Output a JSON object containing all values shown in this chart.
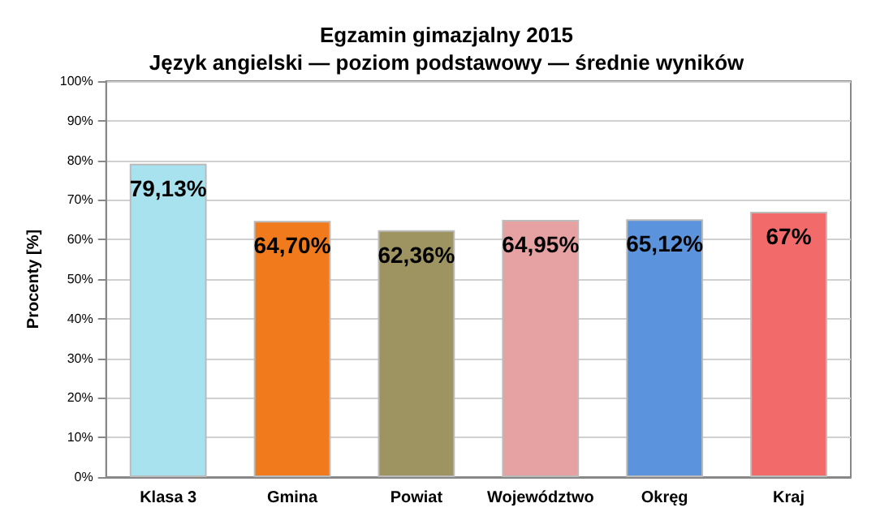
{
  "chart_data": {
    "type": "bar",
    "title": "Egzamin gimazjalny 2015",
    "subtitle": "Język angielski — poziom podstawowy — średnie wyników",
    "ylabel": "Procenty [%]",
    "categories": [
      "Klasa 3",
      "Gmina",
      "Powiat",
      "Województwo",
      "Okręg",
      "Kraj"
    ],
    "values": [
      79.13,
      64.7,
      62.36,
      64.95,
      65.12,
      67
    ],
    "colors": [
      "#a8e2ee",
      "#f07a1c",
      "#9e9462",
      "#e6a2a2",
      "#5b93dc",
      "#f26a6a"
    ],
    "value_labels": [
      "79,13%",
      "64,70%",
      "62,36%",
      "64,95%",
      "65,12%",
      "67%"
    ],
    "ylim": [
      0,
      100
    ],
    "yticks": [
      {
        "value": 0,
        "label": "0%"
      },
      {
        "value": 10,
        "label": "10%"
      },
      {
        "value": 20,
        "label": "20%"
      },
      {
        "value": 30,
        "label": "30%"
      },
      {
        "value": 40,
        "label": "40%"
      },
      {
        "value": 50,
        "label": "50%"
      },
      {
        "value": 60,
        "label": "60%"
      },
      {
        "value": 70,
        "label": "70%"
      },
      {
        "value": 80,
        "label": "80%"
      },
      {
        "value": 90,
        "label": "90%"
      },
      {
        "value": 100,
        "label": "100%"
      }
    ],
    "grid": "y"
  }
}
